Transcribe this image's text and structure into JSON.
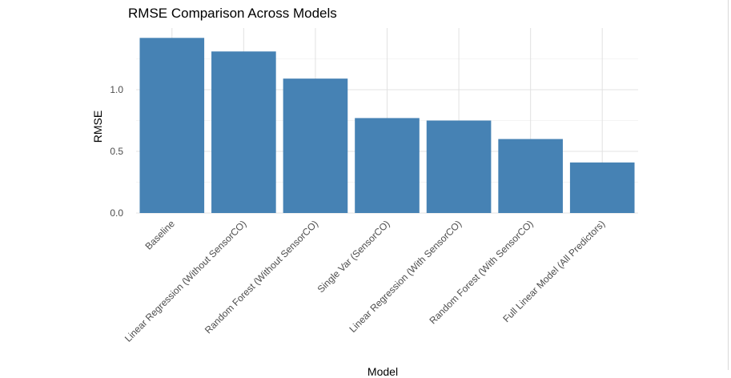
{
  "chart_data": {
    "type": "bar",
    "title": "RMSE Comparison Across Models",
    "ylabel": "RMSE",
    "xlabel": "Model",
    "categories": [
      "Baseline",
      "Linear Regression (Without SensorCO)",
      "Random Forest (Without SensorCO)",
      "Single Var (SensorCO)",
      "Linear Regression (With SensorCO)",
      "Random Forest (With SensorCO)",
      "Full Linear Model (All Predictors)"
    ],
    "values": [
      1.42,
      1.31,
      1.09,
      0.77,
      0.75,
      0.6,
      0.41
    ],
    "ylim": [
      0,
      1.5
    ],
    "yticks": [
      0.0,
      0.5,
      1.0
    ],
    "ytick_labels": [
      "0.0",
      "0.5",
      "1.0"
    ],
    "grid": true,
    "bar_color": "#4682b4"
  }
}
